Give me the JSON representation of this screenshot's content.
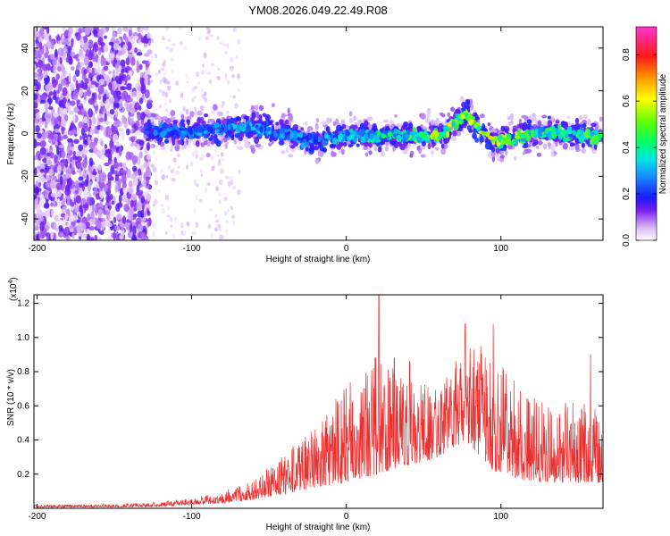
{
  "chart_data": [
    {
      "type": "heatmap",
      "title": "YM08.2026.049.22.49.R08",
      "xlabel": "Height of straight line (km)",
      "ylabel": "Frequency (Hz)",
      "xlim": [
        -202,
        166
      ],
      "ylim": [
        -50,
        50
      ],
      "x_ticks": [
        -200,
        -100,
        0,
        100
      ],
      "y_ticks": [
        -40,
        -20,
        0,
        20,
        40
      ],
      "colorbar": {
        "label": "Normalized spectral amplitude",
        "range": [
          0,
          0.92
        ],
        "ticks": [
          0.0,
          0.2,
          0.4,
          0.6,
          0.8
        ],
        "tick_labels": [
          "0.0",
          "0.2",
          "0.4",
          "0.6",
          "0.8"
        ]
      },
      "ridge": {
        "description_points": [
          {
            "x": -130,
            "freq": 1,
            "amp": 0.25
          },
          {
            "x": -100,
            "freq": 1,
            "amp": 0.3
          },
          {
            "x": -60,
            "freq": 3,
            "amp": 0.35
          },
          {
            "x": -40,
            "freq": 0,
            "amp": 0.3
          },
          {
            "x": -20,
            "freq": -4,
            "amp": 0.3
          },
          {
            "x": 0,
            "freq": -1,
            "amp": 0.35
          },
          {
            "x": 40,
            "freq": -1,
            "amp": 0.45
          },
          {
            "x": 60,
            "freq": -1,
            "amp": 0.6
          },
          {
            "x": 77,
            "freq": 9,
            "amp": 0.55
          },
          {
            "x": 95,
            "freq": -4,
            "amp": 0.6
          },
          {
            "x": 130,
            "freq": 1,
            "amp": 0.45
          },
          {
            "x": 166,
            "freq": -2,
            "amp": 0.5
          }
        ]
      }
    },
    {
      "type": "line",
      "xlabel": "Height of straight line (km)",
      "ylabel": "SNR (10 * v/v)",
      "y_multiplier": "(x10",
      "y_multiplier_exp": "4",
      "y_multiplier_close": ")",
      "xlim": [
        -202,
        166
      ],
      "ylim": [
        0,
        1.25
      ],
      "x_ticks": [
        -200,
        -100,
        0,
        100
      ],
      "y_ticks": [
        0.2,
        0.4,
        0.6,
        0.8,
        1.0,
        1.2
      ],
      "x_tick_labels": [
        "-200",
        "-100",
        "0",
        "100"
      ],
      "y_tick_labels": [
        "0.2",
        "0.4",
        "0.6",
        "0.8",
        "1.0",
        "1.2"
      ],
      "series": [
        {
          "name": "SNR",
          "color": "#e83030",
          "envelope": {
            "x": [
              -202,
              -150,
              -120,
              -100,
              -80,
              -60,
              -40,
              -20,
              0,
              20,
              40,
              60,
              77,
              95,
              120,
              166
            ],
            "peak": [
              0.02,
              0.025,
              0.04,
              0.06,
              0.1,
              0.17,
              0.32,
              0.48,
              0.72,
              0.9,
              0.75,
              0.7,
              0.95,
              0.9,
              0.65,
              0.6
            ],
            "base": [
              0.005,
              0.006,
              0.01,
              0.02,
              0.03,
              0.05,
              0.08,
              0.12,
              0.15,
              0.2,
              0.25,
              0.3,
              0.4,
              0.22,
              0.15,
              0.15
            ]
          },
          "spikes": [
            {
              "x": 21,
              "y": 1.25
            },
            {
              "x": 77,
              "y": 1.08
            },
            {
              "x": 95,
              "y": 1.08
            },
            {
              "x": 87,
              "y": 0.95
            },
            {
              "x": 41,
              "y": 0.86
            },
            {
              "x": 31,
              "y": 0.88
            },
            {
              "x": 74,
              "y": 0.85
            },
            {
              "x": 158,
              "y": 0.9
            }
          ]
        }
      ]
    }
  ],
  "colors": {
    "line": "#e83030",
    "axes": "#000000",
    "background": "#ffffff"
  }
}
